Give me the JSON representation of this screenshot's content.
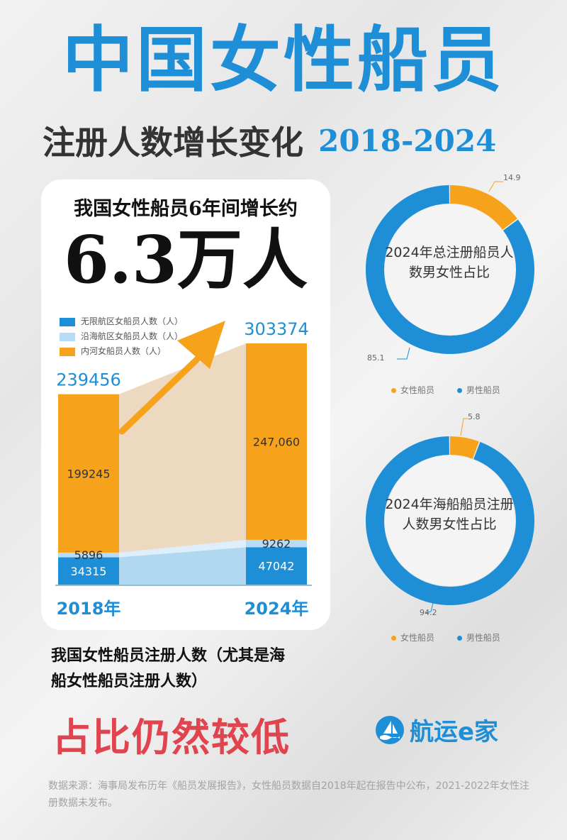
{
  "header": {
    "title": "中国女性船员",
    "subtitle": "注册人数增长变化",
    "years": "2018-2024"
  },
  "highlight": {
    "label": "我国女性船员6年间增长约",
    "value": "6.3万人"
  },
  "colors": {
    "unlimited": "#1e8fd6",
    "coastal": "#b6dcf6",
    "inland": "#f7a21b",
    "female": "#f7a21b",
    "male": "#1e8fd6",
    "accent": "#1e8fd6",
    "conclusion": "#e0454f"
  },
  "chart_data": [
    {
      "type": "bar",
      "stacked": true,
      "categories": [
        "2018年",
        "2024年"
      ],
      "series": [
        {
          "name": "无限航区女船员人数（人）",
          "values": [
            34315,
            47042
          ],
          "labels": [
            "34315",
            "47042"
          ]
        },
        {
          "name": "沿海航区女船员人数（人）",
          "values": [
            5896,
            9262
          ],
          "labels": [
            "5896",
            "9262"
          ]
        },
        {
          "name": "内河女船员人数（人）",
          "values": [
            199245,
            247060
          ],
          "labels": [
            "199245",
            "247,060"
          ]
        }
      ],
      "totals": [
        "239456",
        "303374"
      ],
      "ylim": [
        0,
        303374
      ],
      "legend_position": "top-left"
    },
    {
      "type": "pie",
      "donut": true,
      "title": "2024年总注册船员人数男女性占比",
      "labels": [
        "女性船员",
        "男性船员"
      ],
      "values": [
        14.9,
        85.1
      ],
      "value_labels": [
        "14.9",
        "85.1"
      ],
      "legend_position": "bottom"
    },
    {
      "type": "pie",
      "donut": true,
      "title": "2024年海船船员注册人数男女性占比",
      "labels": [
        "女性船员",
        "男性船员"
      ],
      "values": [
        5.8,
        94.2
      ],
      "value_labels": [
        "5.8",
        "94.2"
      ],
      "legend_position": "bottom"
    }
  ],
  "bottom": {
    "line1": "我国女性船员注册人数（尤其是海",
    "line2": "船女性船员注册人数）",
    "conclusion": "占比仍然较低"
  },
  "brand": {
    "name": "航运e家",
    "icon": "sail-wave-icon"
  },
  "source": "数据来源：海事局发布历年《船员发展报告》，女性船员数据自2018年起在报告中公布，2021-2022年女性注册数据未发布。"
}
